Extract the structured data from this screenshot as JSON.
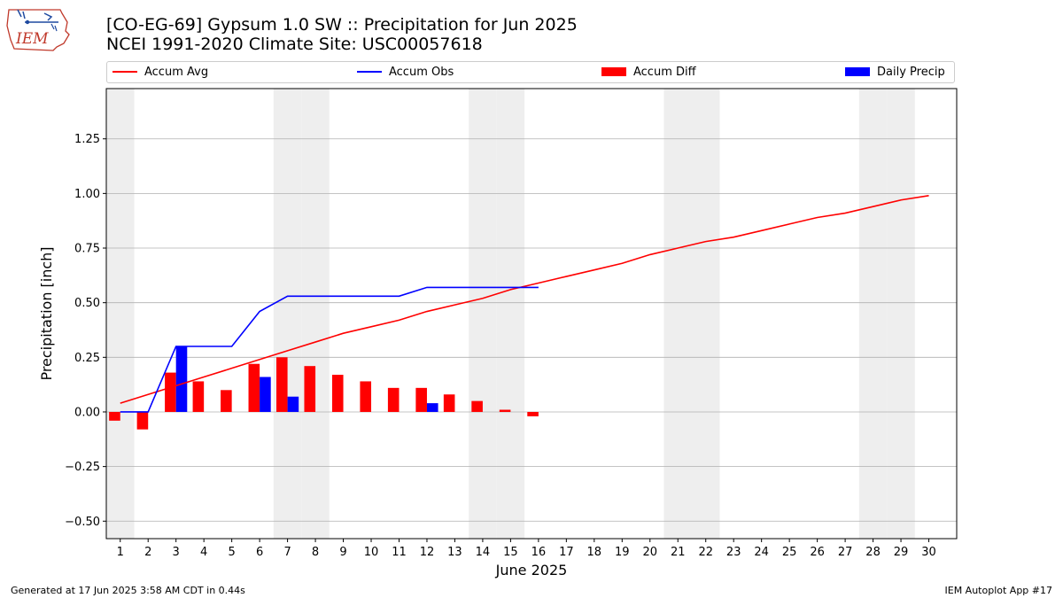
{
  "title_line1": "[CO-EG-69] Gypsum 1.0 SW :: Precipitation for Jun 2025",
  "title_line2": "NCEI 1991-2020 Climate Site: USC00057618",
  "logo_text": "IEM",
  "footer_left": "Generated at 17 Jun 2025 3:58 AM CDT in 0.44s",
  "footer_right": "IEM Autoplot App #17",
  "colors": {
    "avg": "#ff0000",
    "obs": "#0000ff",
    "diff": "#ff0000",
    "daily": "#0000ff",
    "weekend": "#eeeeee",
    "grid": "#b0b0b0"
  },
  "chart_data": {
    "type": "bar",
    "xlabel": "June 2025",
    "ylabel": "Precipitation [inch]",
    "xlim": [
      0.5,
      31
    ],
    "ylim": [
      -0.58,
      1.48
    ],
    "grid": true,
    "legend_placement": "top",
    "x_ticks": [
      1,
      2,
      3,
      4,
      5,
      6,
      7,
      8,
      9,
      10,
      11,
      12,
      13,
      14,
      15,
      16,
      17,
      18,
      19,
      20,
      21,
      22,
      23,
      24,
      25,
      26,
      27,
      28,
      29,
      30
    ],
    "y_ticks": [
      -0.5,
      -0.25,
      0.0,
      0.25,
      0.5,
      0.75,
      1.0,
      1.25
    ],
    "y_tick_labels": [
      "−0.50",
      "−0.25",
      "0.00",
      "0.25",
      "0.50",
      "0.75",
      "1.00",
      "1.25"
    ],
    "weekend_days": [
      1,
      7,
      8,
      14,
      15,
      21,
      22,
      28,
      29
    ],
    "series": [
      {
        "name": "Accum Avg",
        "kind": "line",
        "x": [
          1,
          2,
          3,
          4,
          5,
          6,
          7,
          8,
          9,
          10,
          11,
          12,
          13,
          14,
          15,
          16,
          17,
          18,
          19,
          20,
          21,
          22,
          23,
          24,
          25,
          26,
          27,
          28,
          29,
          30
        ],
        "values": [
          0.04,
          0.08,
          0.12,
          0.16,
          0.2,
          0.24,
          0.28,
          0.32,
          0.36,
          0.39,
          0.42,
          0.46,
          0.49,
          0.52,
          0.56,
          0.59,
          0.62,
          0.65,
          0.68,
          0.72,
          0.75,
          0.78,
          0.8,
          0.83,
          0.86,
          0.89,
          0.91,
          0.94,
          0.97,
          0.99
        ]
      },
      {
        "name": "Accum Obs",
        "kind": "line",
        "x": [
          1,
          2,
          3,
          4,
          5,
          6,
          7,
          8,
          9,
          10,
          11,
          12,
          13,
          14,
          15,
          16
        ],
        "values": [
          0.0,
          0.0,
          0.3,
          0.3,
          0.3,
          0.46,
          0.53,
          0.53,
          0.53,
          0.53,
          0.53,
          0.57,
          0.57,
          0.57,
          0.57,
          0.57
        ]
      },
      {
        "name": "Accum Diff",
        "kind": "bar",
        "x": [
          1,
          2,
          3,
          4,
          5,
          6,
          7,
          8,
          9,
          10,
          11,
          12,
          13,
          14,
          15,
          16
        ],
        "values": [
          -0.04,
          -0.08,
          0.18,
          0.14,
          0.1,
          0.22,
          0.25,
          0.21,
          0.17,
          0.14,
          0.11,
          0.11,
          0.08,
          0.05,
          0.01,
          -0.02
        ]
      },
      {
        "name": "Daily Precip",
        "kind": "bar",
        "x": [
          3,
          6,
          7,
          12
        ],
        "values": [
          0.3,
          0.16,
          0.07,
          0.04
        ]
      }
    ]
  }
}
